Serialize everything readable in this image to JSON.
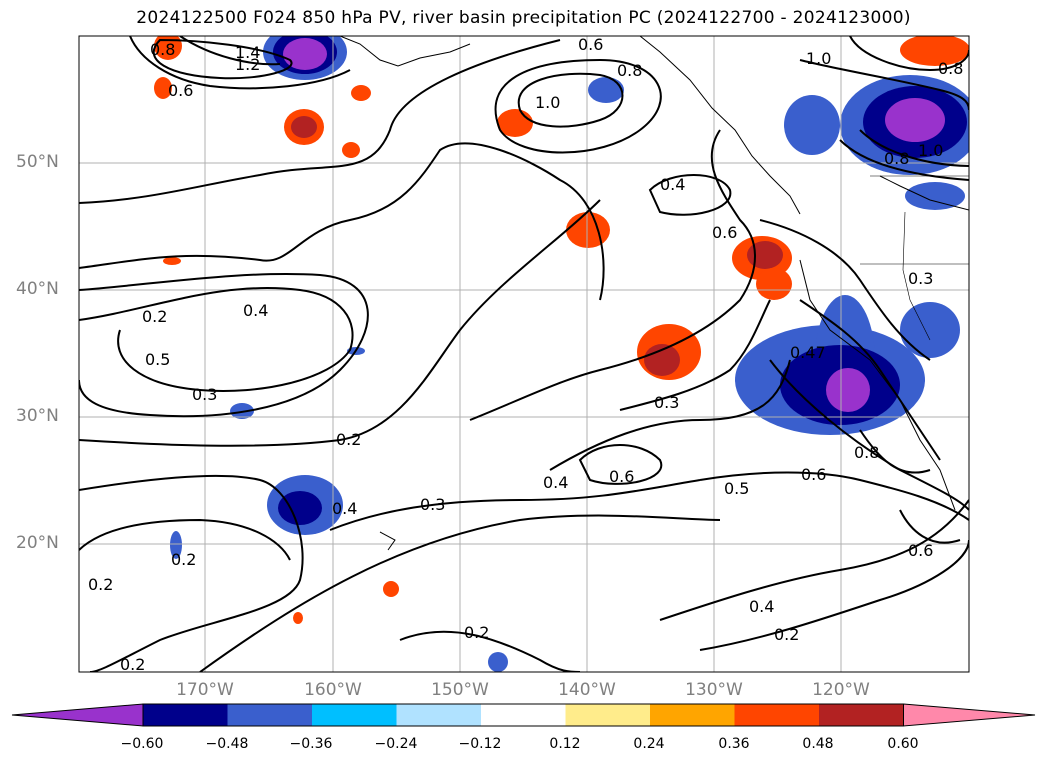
{
  "title": "2024122500 F024 850 hPa PV, river basin precipitation PC (2024122700 - 2024123000)",
  "lat_labels": [
    "50°N",
    "40°N",
    "30°N",
    "20°N"
  ],
  "lon_labels": [
    "170°W",
    "160°W",
    "150°W",
    "140°W",
    "130°W",
    "120°W"
  ],
  "colorbar": {
    "ticks": [
      "−0.60",
      "−0.48",
      "−0.36",
      "−0.24",
      "−0.12",
      "0.12",
      "0.24",
      "0.36",
      "0.48",
      "0.60"
    ],
    "colors": [
      "#9932CC",
      "#00008B",
      "#3A5FCD",
      "#00BFFF",
      "#B0E2FF",
      "#FFFFFF",
      "#FFEC8B",
      "#FFA500",
      "#FF4500",
      "#B22222",
      "#FF88AA"
    ]
  },
  "contour_labels": [
    "1.4",
    "1.2",
    "0.8",
    "0.6",
    "0.6",
    "0.8",
    "1.0",
    "1.0",
    "0.8",
    "1.0",
    "0.8",
    "0.4",
    "0.6",
    "0.3",
    "0.2",
    "0.4",
    "0.5",
    "0.3",
    "0.47",
    "0.3",
    "0.2",
    "0.4",
    "0.3",
    "0.4",
    "0.6",
    "0.5",
    "0.6",
    "0.8",
    "0.6",
    "0.2",
    "0.2",
    "0.2",
    "0.4",
    "0.2",
    "0.2"
  ]
}
